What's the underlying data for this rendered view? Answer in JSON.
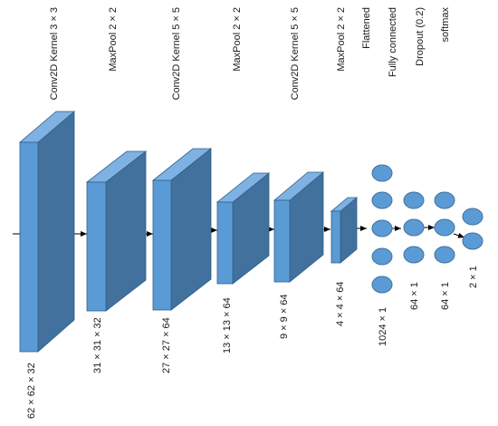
{
  "diagram": {
    "layers": [
      {
        "op_label": "Conv2D Kernel 3 × 3",
        "size_label": "62 × 62 × 32"
      },
      {
        "op_label": "MaxPool 2 × 2",
        "size_label": "31 × 31 × 32"
      },
      {
        "op_label": "Conv2D Kernel 5 × 5",
        "size_label": "27 × 27 × 64"
      },
      {
        "op_label": "MaxPool 2 × 2",
        "size_label": "13 × 13 × 64"
      },
      {
        "op_label": "Conv2D Kernel 5 × 5",
        "size_label": "9 × 9 × 64"
      },
      {
        "op_label": "MaxPool 2 × 2",
        "size_label": "4 × 4 × 64"
      }
    ],
    "dense": [
      {
        "op_label": "Flattened",
        "size_label": "1024 × 1"
      },
      {
        "op_label": "Fully connected",
        "size_label": "64 × 1"
      },
      {
        "op_label": "Dropout (0.2)",
        "size_label": "64 × 1"
      },
      {
        "op_label": "softmax",
        "size_label": "2 × 1"
      }
    ],
    "colors": {
      "front": "#5b9bd5",
      "top": "#7fb2e2",
      "side": "#41719c",
      "stroke": "#2f5f8a",
      "neuron": "#5b9bd5",
      "arrow": "#000000"
    }
  }
}
